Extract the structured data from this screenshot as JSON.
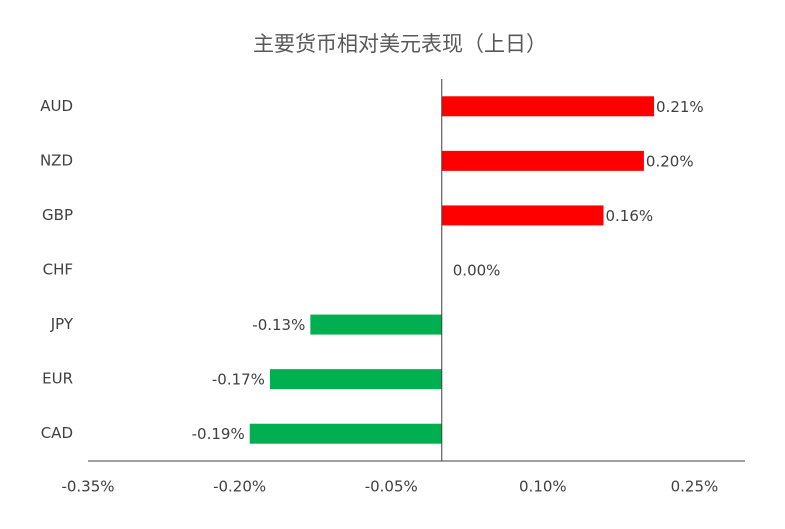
{
  "chart_data": {
    "type": "hbar",
    "title": "主要货币相对美元表现（上日）",
    "categories": [
      "AUD",
      "NZD",
      "GBP",
      "CHF",
      "JPY",
      "EUR",
      "CAD"
    ],
    "values": [
      0.21,
      0.2,
      0.16,
      0.0,
      -0.13,
      -0.17,
      -0.19
    ],
    "value_labels": [
      "0.21%",
      "0.20%",
      "0.16%",
      "0.00%",
      "-0.13%",
      "-0.17%",
      "-0.19%"
    ],
    "positive_color": "#ff0000",
    "negative_color": "#00b050",
    "xlim": [
      -0.35,
      0.3
    ],
    "xticks": [
      {
        "value": -0.35,
        "label": "-0.35%"
      },
      {
        "value": -0.2,
        "label": "-0.20%"
      },
      {
        "value": -0.05,
        "label": "-0.05%"
      },
      {
        "value": 0.1,
        "label": "0.10%"
      },
      {
        "value": 0.25,
        "label": "0.25%"
      }
    ]
  }
}
